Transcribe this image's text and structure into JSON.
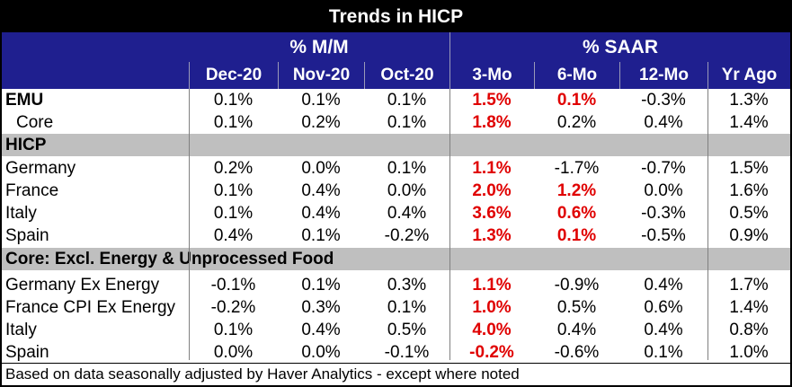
{
  "title": "Trends in HICP",
  "groups": {
    "mm": "% M/M",
    "saar": "% SAAR"
  },
  "columns": [
    "Dec-20",
    "Nov-20",
    "Oct-20",
    "3-Mo",
    "6-Mo",
    "12-Mo",
    "Yr Ago"
  ],
  "rows": [
    {
      "label": "EMU",
      "type": "head",
      "values": [
        "0.1%",
        "0.1%",
        "0.1%",
        "1.5%",
        "0.1%",
        "-0.3%",
        "1.3%"
      ],
      "red": [
        3,
        4
      ]
    },
    {
      "label": "Core",
      "type": "indent",
      "values": [
        "0.1%",
        "0.2%",
        "0.1%",
        "1.8%",
        "0.2%",
        "0.4%",
        "1.4%"
      ],
      "red": [
        3
      ]
    },
    {
      "label": "HICP",
      "type": "section",
      "values": [
        "",
        "",
        "",
        "",
        "",
        "",
        ""
      ],
      "red": []
    },
    {
      "label": "Germany",
      "type": "normal",
      "values": [
        "0.2%",
        "0.0%",
        "0.1%",
        "1.1%",
        "-1.7%",
        "-0.7%",
        "1.5%"
      ],
      "red": [
        3
      ]
    },
    {
      "label": "France",
      "type": "normal",
      "values": [
        "0.1%",
        "0.4%",
        "0.0%",
        "2.0%",
        "1.2%",
        "0.0%",
        "1.6%"
      ],
      "red": [
        3,
        4
      ]
    },
    {
      "label": "Italy",
      "type": "normal",
      "values": [
        "0.1%",
        "0.4%",
        "0.4%",
        "3.6%",
        "0.6%",
        "-0.3%",
        "0.5%"
      ],
      "red": [
        3,
        4
      ]
    },
    {
      "label": "Spain",
      "type": "normal",
      "values": [
        "0.4%",
        "0.1%",
        "-0.2%",
        "1.3%",
        "0.1%",
        "-0.5%",
        "0.9%"
      ],
      "red": [
        3,
        4
      ]
    },
    {
      "label": "Core: Excl. Energy & Unprocessed Food",
      "type": "section",
      "values": [
        "",
        "",
        "",
        "",
        "",
        "",
        ""
      ],
      "red": []
    },
    {
      "label": "Germany Ex Energy",
      "type": "normal",
      "values": [
        "-0.1%",
        "0.1%",
        "0.3%",
        "1.1%",
        "-0.9%",
        "0.4%",
        "1.7%"
      ],
      "red": [
        3
      ]
    },
    {
      "label": "France CPI Ex Energy",
      "type": "normal",
      "values": [
        "-0.2%",
        "0.3%",
        "0.1%",
        "1.0%",
        "0.5%",
        "0.6%",
        "1.4%"
      ],
      "red": [
        3
      ]
    },
    {
      "label": "Italy",
      "type": "normal",
      "values": [
        "0.1%",
        "0.4%",
        "0.5%",
        "4.0%",
        "0.4%",
        "0.4%",
        "0.8%"
      ],
      "red": [
        3
      ]
    },
    {
      "label": "Spain",
      "type": "normal",
      "values": [
        "0.0%",
        "0.0%",
        "-0.1%",
        "-0.2%",
        "-0.6%",
        "0.1%",
        "1.0%"
      ],
      "red": [
        3
      ]
    }
  ],
  "footnote": "Based on data seasonally adjusted by Haver Analytics - except where noted"
}
